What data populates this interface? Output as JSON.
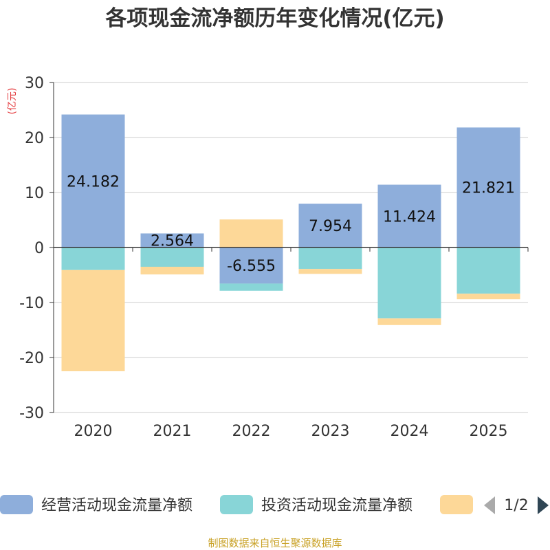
{
  "chart_data": {
    "type": "bar",
    "stacked": true,
    "title": "各项现金流净额历年变化情况(亿元)",
    "ylabel": "(亿元)",
    "ylim": [
      -30,
      30
    ],
    "yticks": [
      30,
      20,
      10,
      0,
      -10,
      -20,
      -30
    ],
    "categories": [
      "2020",
      "2021",
      "2022",
      "2023",
      "2024",
      "2025"
    ],
    "series": [
      {
        "name": "经营活动现金流量净额",
        "color": "#8eaedb",
        "values": [
          24.182,
          2.564,
          -6.555,
          7.954,
          11.424,
          21.821
        ],
        "labels": [
          "24.182",
          "2.564",
          "-6.555",
          "7.954",
          "11.424",
          "21.821"
        ]
      },
      {
        "name": "投资活动现金流量净额",
        "color": "#88d5d7",
        "values": [
          -4.1,
          -3.5,
          -1.3,
          -3.9,
          -12.9,
          -8.4
        ]
      },
      {
        "name": "",
        "color": "#fdd898",
        "values": [
          -18.4,
          -1.4,
          5.1,
          -0.9,
          -1.2,
          -1.0
        ]
      }
    ],
    "legend": {
      "position": "bottom",
      "page": "1/2"
    },
    "source": "制图数据来自恒生聚源数据库"
  }
}
